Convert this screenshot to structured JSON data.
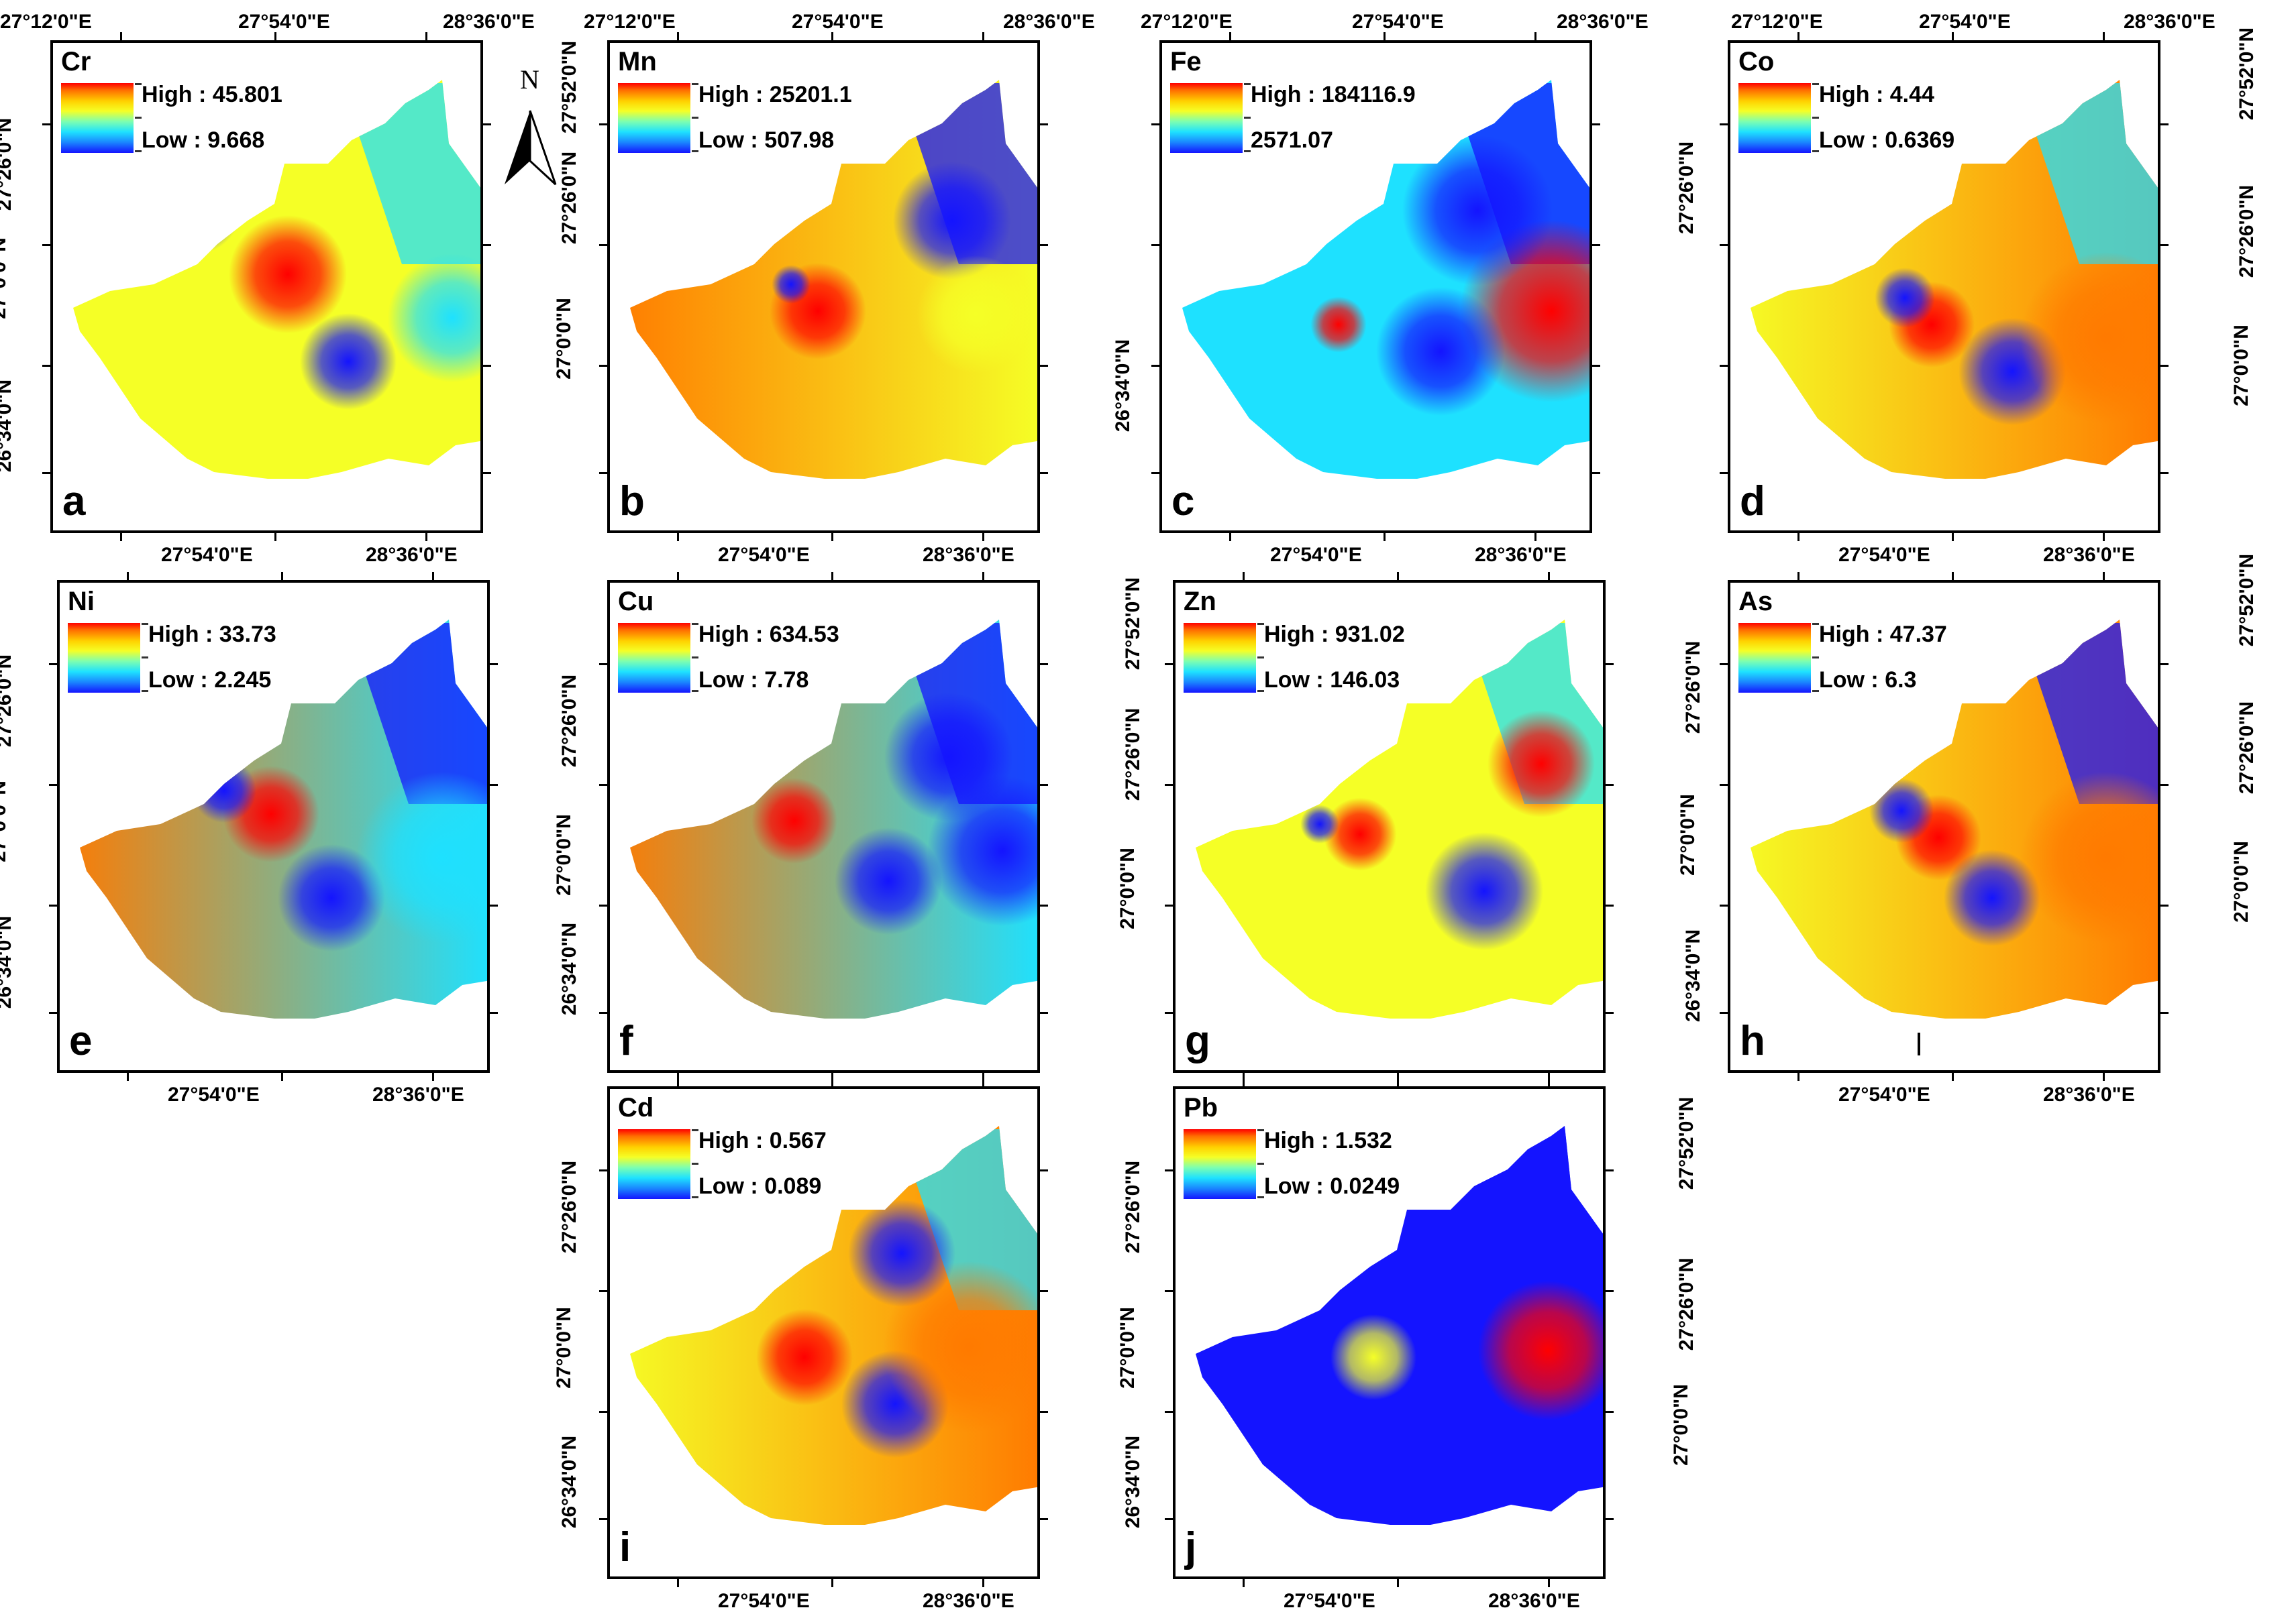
{
  "lon_labels": {
    "west": "27°12'0\"E",
    "mid": "27°54'0\"E",
    "east": "28°36'0\"E"
  },
  "lat_labels": {
    "north": "27°52'0\"N",
    "upper": "27°26'0\"N",
    "center": "27°0'0\"N",
    "south": "26°34'0\"N"
  },
  "north_arrow": {
    "label": "N"
  },
  "colormap": {
    "high": "#ff0000",
    "orange": "#ff7a00",
    "yellow": "#f5ff26",
    "cyan": "#1ee1ff",
    "low": "#1414ff"
  },
  "panels": [
    {
      "letter": "a",
      "element": "Cr",
      "high_text": "High : 45.801",
      "low_text": "Low : 9.668"
    },
    {
      "letter": "b",
      "element": "Mn",
      "high_text": "High : 25201.1",
      "low_text": "Low : 507.98"
    },
    {
      "letter": "c",
      "element": "Fe",
      "high_text": "High : 184116.9",
      "low_text": "2571.07"
    },
    {
      "letter": "d",
      "element": "Co",
      "high_text": "High : 4.44",
      "low_text": "Low : 0.6369"
    },
    {
      "letter": "e",
      "element": "Ni",
      "high_text": "High : 33.73",
      "low_text": "Low : 2.245"
    },
    {
      "letter": "f",
      "element": "Cu",
      "high_text": "High : 634.53",
      "low_text": "Low : 7.78"
    },
    {
      "letter": "g",
      "element": "Zn",
      "high_text": "High : 931.02",
      "low_text": "Low : 146.03"
    },
    {
      "letter": "h",
      "element": "As",
      "high_text": "High : 47.37",
      "low_text": "Low : 6.3"
    },
    {
      "letter": "i",
      "element": "Cd",
      "high_text": "High : 0.567",
      "low_text": "Low : 0.089"
    },
    {
      "letter": "j",
      "element": "Pb",
      "high_text": "High : 1.532",
      "low_text": "Low : 0.0249"
    }
  ]
}
